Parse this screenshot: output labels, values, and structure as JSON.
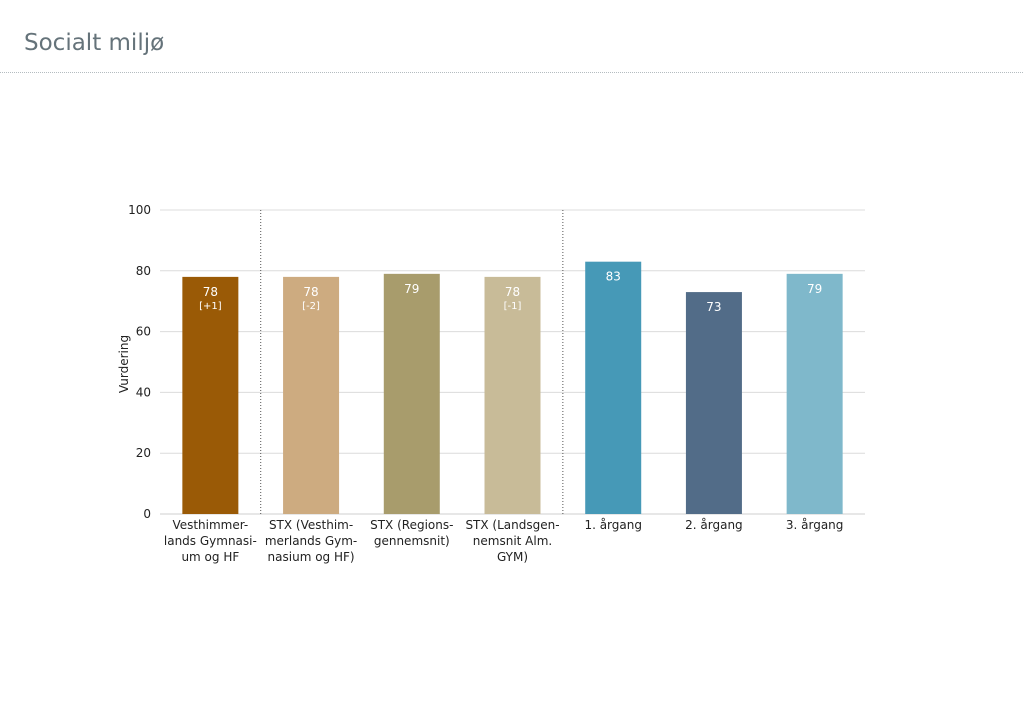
{
  "page": {
    "title": "Socialt miljø"
  },
  "chart_data": {
    "type": "bar",
    "ylabel": "Vurdering",
    "ylim": [
      0,
      100
    ],
    "yticks": [
      0,
      20,
      40,
      60,
      80,
      100
    ],
    "grid": true,
    "categories": [
      {
        "label_lines": [
          "Vesthimmer-",
          "lands Gymnasi-",
          "um og HF"
        ],
        "value": 78,
        "value_label": "78",
        "delta": "[+1]",
        "color": "#9a5a06"
      },
      {
        "label_lines": [
          "STX (Vesthim-",
          "merlands Gym-",
          "nasium og HF)"
        ],
        "value": 78,
        "value_label": "78",
        "delta": "[-2]",
        "color": "#cdab80"
      },
      {
        "label_lines": [
          "STX (Regions-",
          "gennemsnit)"
        ],
        "value": 79,
        "value_label": "79",
        "delta": "",
        "color": "#a89c6c"
      },
      {
        "label_lines": [
          "STX (Landsgen-",
          "nemsnit Alm.",
          "GYM)"
        ],
        "value": 78,
        "value_label": "78",
        "delta": "[-1]",
        "color": "#c8bb98"
      },
      {
        "label_lines": [
          "1. årgang"
        ],
        "value": 83,
        "value_label": "83",
        "delta": "",
        "color": "#4699b7"
      },
      {
        "label_lines": [
          "2. årgang"
        ],
        "value": 73,
        "value_label": "73",
        "delta": "",
        "color": "#526c88"
      },
      {
        "label_lines": [
          "3. årgang"
        ],
        "value": 79,
        "value_label": "79",
        "delta": "",
        "color": "#7fb8cb"
      }
    ],
    "group_separators_after": [
      0,
      3
    ]
  }
}
